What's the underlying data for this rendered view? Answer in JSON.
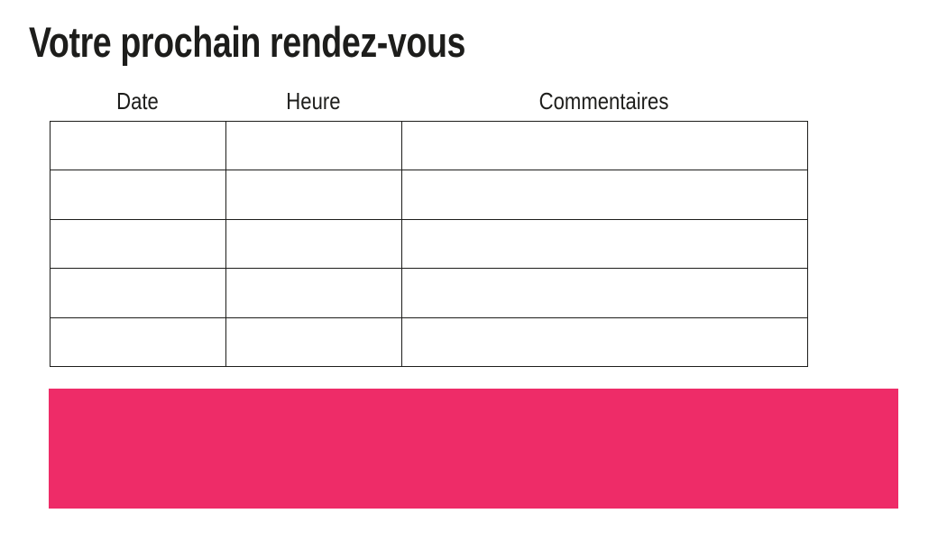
{
  "header": {
    "title": "Votre prochain rendez-vous"
  },
  "table": {
    "columns": [
      {
        "label": "Date"
      },
      {
        "label": "Heure"
      },
      {
        "label": "Commentaires"
      }
    ],
    "rows": [
      [
        "",
        "",
        ""
      ],
      [
        "",
        "",
        ""
      ],
      [
        "",
        "",
        ""
      ],
      [
        "",
        "",
        ""
      ],
      [
        "",
        "",
        ""
      ]
    ]
  },
  "banner": {
    "text": ""
  },
  "colors": {
    "accent_pink": "#ee2c68",
    "table_border": "#1d1d1b",
    "text": "#1d1d1b",
    "background": "#ffffff"
  }
}
